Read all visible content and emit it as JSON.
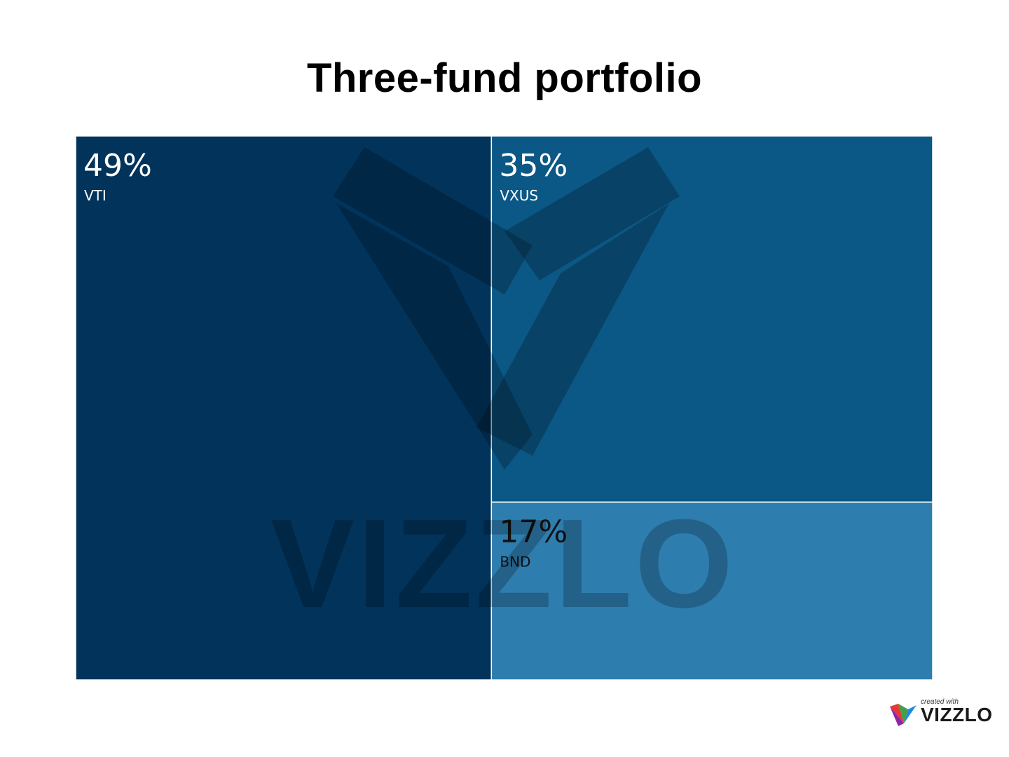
{
  "chart_data": {
    "type": "treemap",
    "title": "Three-fund portfolio",
    "items": [
      {
        "name": "VTI",
        "value": 49,
        "label": "49%",
        "color": "#02335a",
        "text_color": "#ffffff"
      },
      {
        "name": "VXUS",
        "value": 35,
        "label": "35%",
        "color": "#0b5785",
        "text_color": "#ffffff"
      },
      {
        "name": "BND",
        "value": 17,
        "label": "17%",
        "color": "#2e7daf",
        "text_color": "#111111"
      }
    ]
  },
  "watermark": {
    "text": "VIZZLO"
  },
  "badge": {
    "small_text": "created with",
    "brand": "VIZZLO"
  },
  "colors": {
    "background": "#ffffff",
    "separator": "#ffffff"
  }
}
